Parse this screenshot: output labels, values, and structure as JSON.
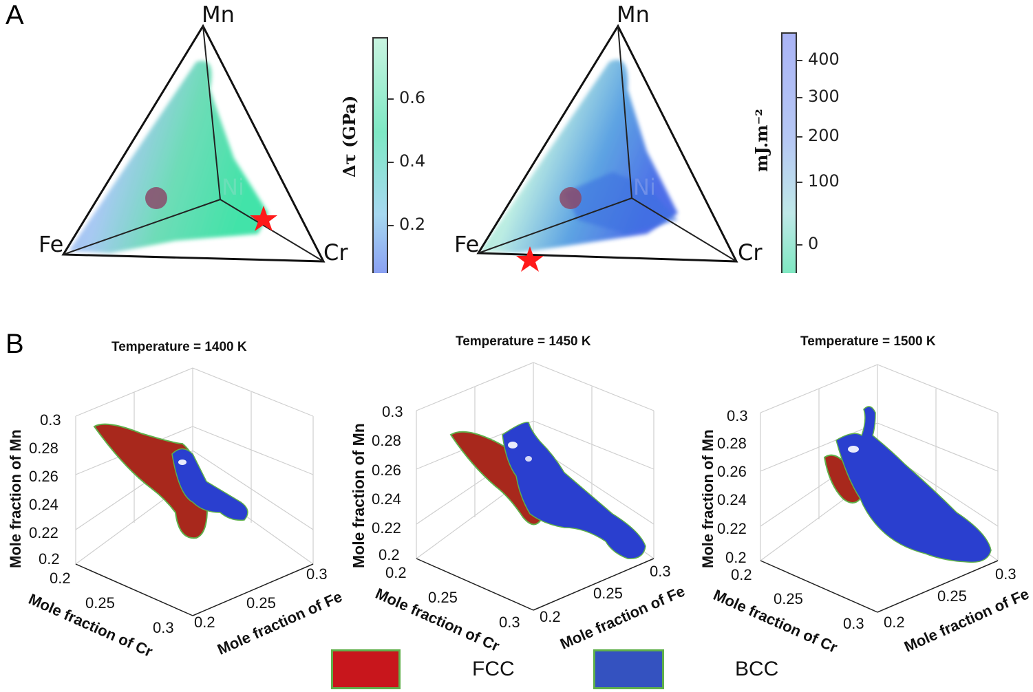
{
  "panel_a": {
    "label": "A",
    "left_plot": {
      "vertices": {
        "top": "Mn",
        "left": "Fe",
        "right": "Cr",
        "center": "Ni"
      },
      "colorbar": {
        "title": "Δτ (GPa)",
        "ticks": [
          "0.6",
          "0.4",
          "0.2"
        ],
        "color_top": "#c8f4e0",
        "color_mid": "#5fe0b2",
        "color_bottom": "#8aa0f2"
      }
    },
    "right_plot": {
      "vertices": {
        "top": "Mn",
        "left": "Fe",
        "right": "Cr",
        "center": "Ni"
      },
      "colorbar": {
        "title": "mJ.m⁻²",
        "ticks": [
          "400",
          "300",
          "200",
          "100",
          "0"
        ],
        "color_top": "#aab4f6",
        "color_bottom": "#7fe8c2"
      }
    }
  },
  "panel_b": {
    "label": "B",
    "plots": [
      {
        "title": "Temperature = 1400 K",
        "z_label": "Mole fraction of Mn",
        "z_ticks": [
          "0.3",
          "0.28",
          "0.26",
          "0.24",
          "0.22",
          "0.2"
        ],
        "x_label": "Mole fraction of Cr",
        "x_ticks": [
          "0.2",
          "0.25",
          "0.3"
        ],
        "y_label": "Mole fraction of Fe",
        "y_ticks": [
          "0.2",
          "0.25",
          "0.3"
        ]
      },
      {
        "title": "Temperature = 1450 K",
        "z_label": "Mole fraction of Mn",
        "z_ticks": [
          "0.3",
          "0.28",
          "0.26",
          "0.24",
          "0.22",
          "0.2"
        ],
        "x_label": "Mole fraction of Cr",
        "x_ticks": [
          "0.2",
          "0.25",
          "0.3"
        ],
        "y_label": "Mole fraction of Fe",
        "y_ticks": [
          "0.2",
          "0.25",
          "0.3"
        ]
      },
      {
        "title": "Temperature = 1500 K",
        "z_label": "Mole fraction of Mn",
        "z_ticks": [
          "0.3",
          "0.28",
          "0.26",
          "0.24",
          "0.22",
          "0.2"
        ],
        "x_label": "Mole fraction of Cr",
        "x_ticks": [
          "0.2",
          "0.25",
          "0.3"
        ],
        "y_label": "Mole fraction of Fe",
        "y_ticks": [
          "0.2",
          "0.25",
          "0.3"
        ]
      }
    ],
    "legend": [
      {
        "label": "FCC",
        "color": "#c8161c",
        "border": "#5fb04a"
      },
      {
        "label": "BCC",
        "color": "#3452c0",
        "border": "#5fb04a"
      }
    ]
  }
}
